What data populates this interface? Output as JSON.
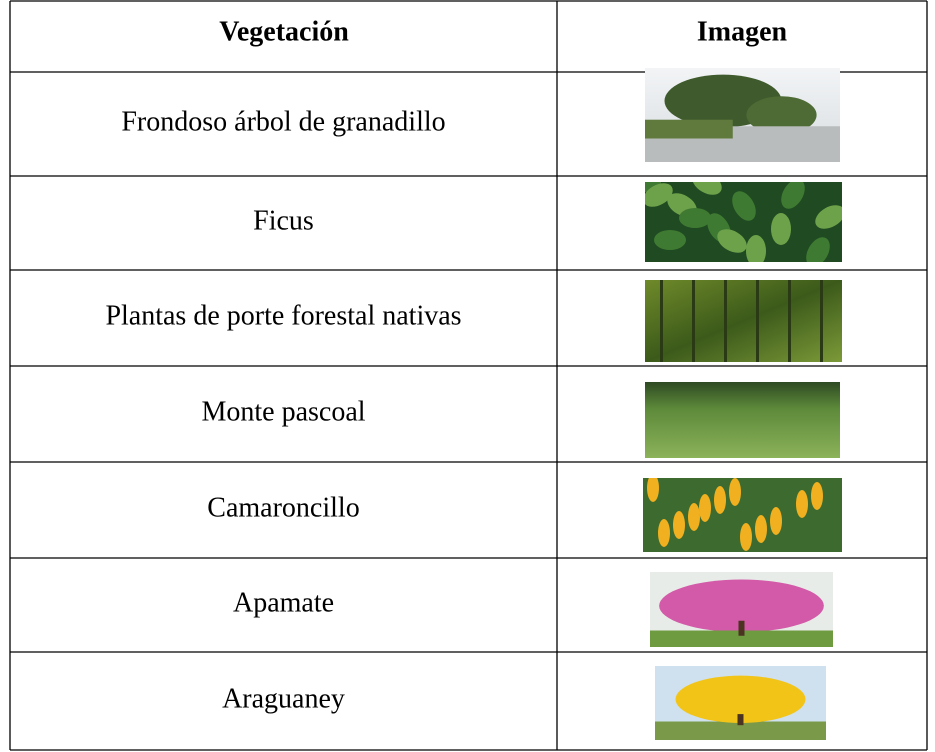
{
  "table": {
    "header": [
      "Vegetación",
      "Imagen"
    ],
    "rows": [
      [
        "Frondoso árbol de granadillo"
      ],
      [
        "Ficus"
      ],
      [
        "Plantas de porte forestal nativas"
      ],
      [
        "Monte pascoal"
      ],
      [
        "Camaroncillo"
      ],
      [
        "Apamate"
      ],
      [
        "Araguaney"
      ]
    ]
  }
}
